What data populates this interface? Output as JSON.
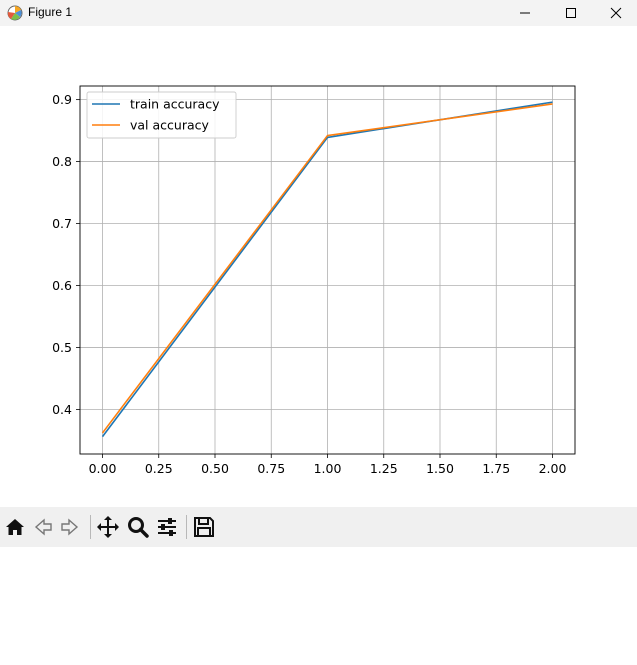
{
  "window": {
    "title": "Figure 1"
  },
  "toolbar": {
    "buttons": [
      "home-icon",
      "back-icon",
      "forward-icon",
      "pan-icon",
      "zoom-icon",
      "configure-subplots-icon",
      "save-icon"
    ]
  },
  "chart_data": {
    "type": "line",
    "title": "",
    "xlabel": "",
    "ylabel": "",
    "x": [
      0,
      1,
      2
    ],
    "series": [
      {
        "name": "train accuracy",
        "color": "#1f77b4",
        "values": [
          0.356,
          0.839,
          0.896
        ]
      },
      {
        "name": "val accuracy",
        "color": "#ff7f0e",
        "values": [
          0.362,
          0.842,
          0.893
        ]
      }
    ],
    "xlim": [
      -0.1,
      2.1
    ],
    "ylim": [
      0.328,
      0.922
    ],
    "xticks": [
      0.0,
      0.25,
      0.5,
      0.75,
      1.0,
      1.25,
      1.5,
      1.75,
      2.0
    ],
    "xtick_labels": [
      "0.00",
      "0.25",
      "0.50",
      "0.75",
      "1.00",
      "1.25",
      "1.50",
      "1.75",
      "2.00"
    ],
    "yticks": [
      0.4,
      0.5,
      0.6,
      0.7,
      0.8,
      0.9
    ],
    "ytick_labels": [
      "0.4",
      "0.5",
      "0.6",
      "0.7",
      "0.8",
      "0.9"
    ],
    "grid": true,
    "legend": "top-left"
  }
}
